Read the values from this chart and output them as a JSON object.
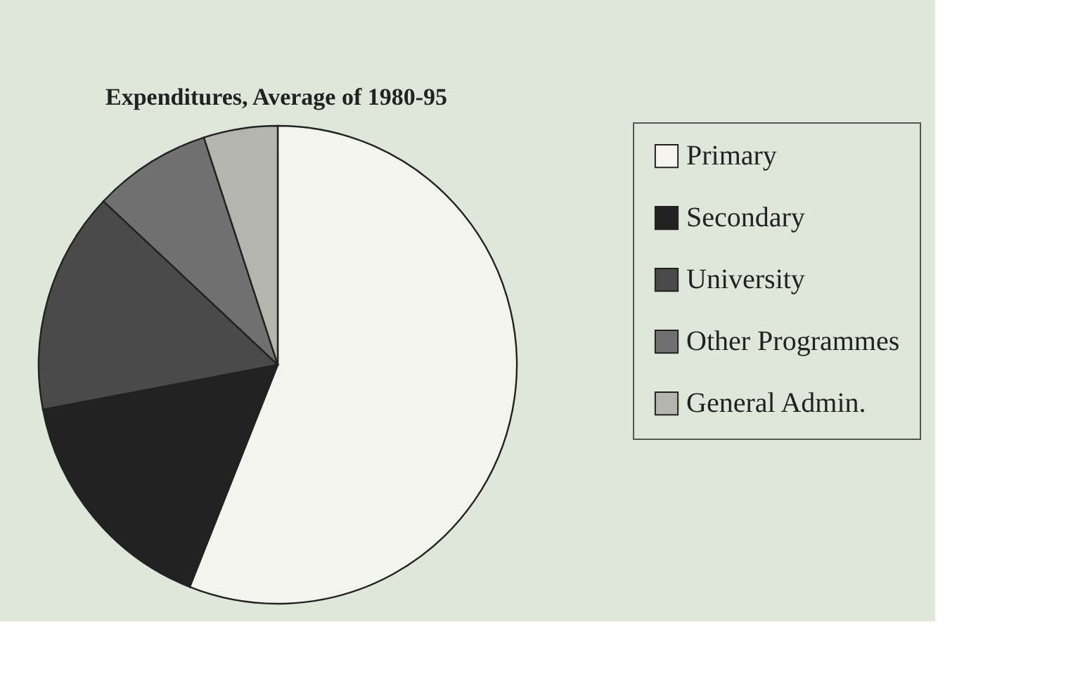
{
  "chart_data": {
    "type": "pie",
    "title": "Expenditures, Average of 1980-95",
    "categories": [
      "Primary",
      "Secondary",
      "University",
      "Other Programmes",
      "General Admin."
    ],
    "values": [
      56,
      16,
      15,
      8,
      5
    ],
    "colors": [
      "#f4f4ee",
      "#222222",
      "#4a4a4a",
      "#707070",
      "#b4b6ae"
    ],
    "legend": "right"
  }
}
